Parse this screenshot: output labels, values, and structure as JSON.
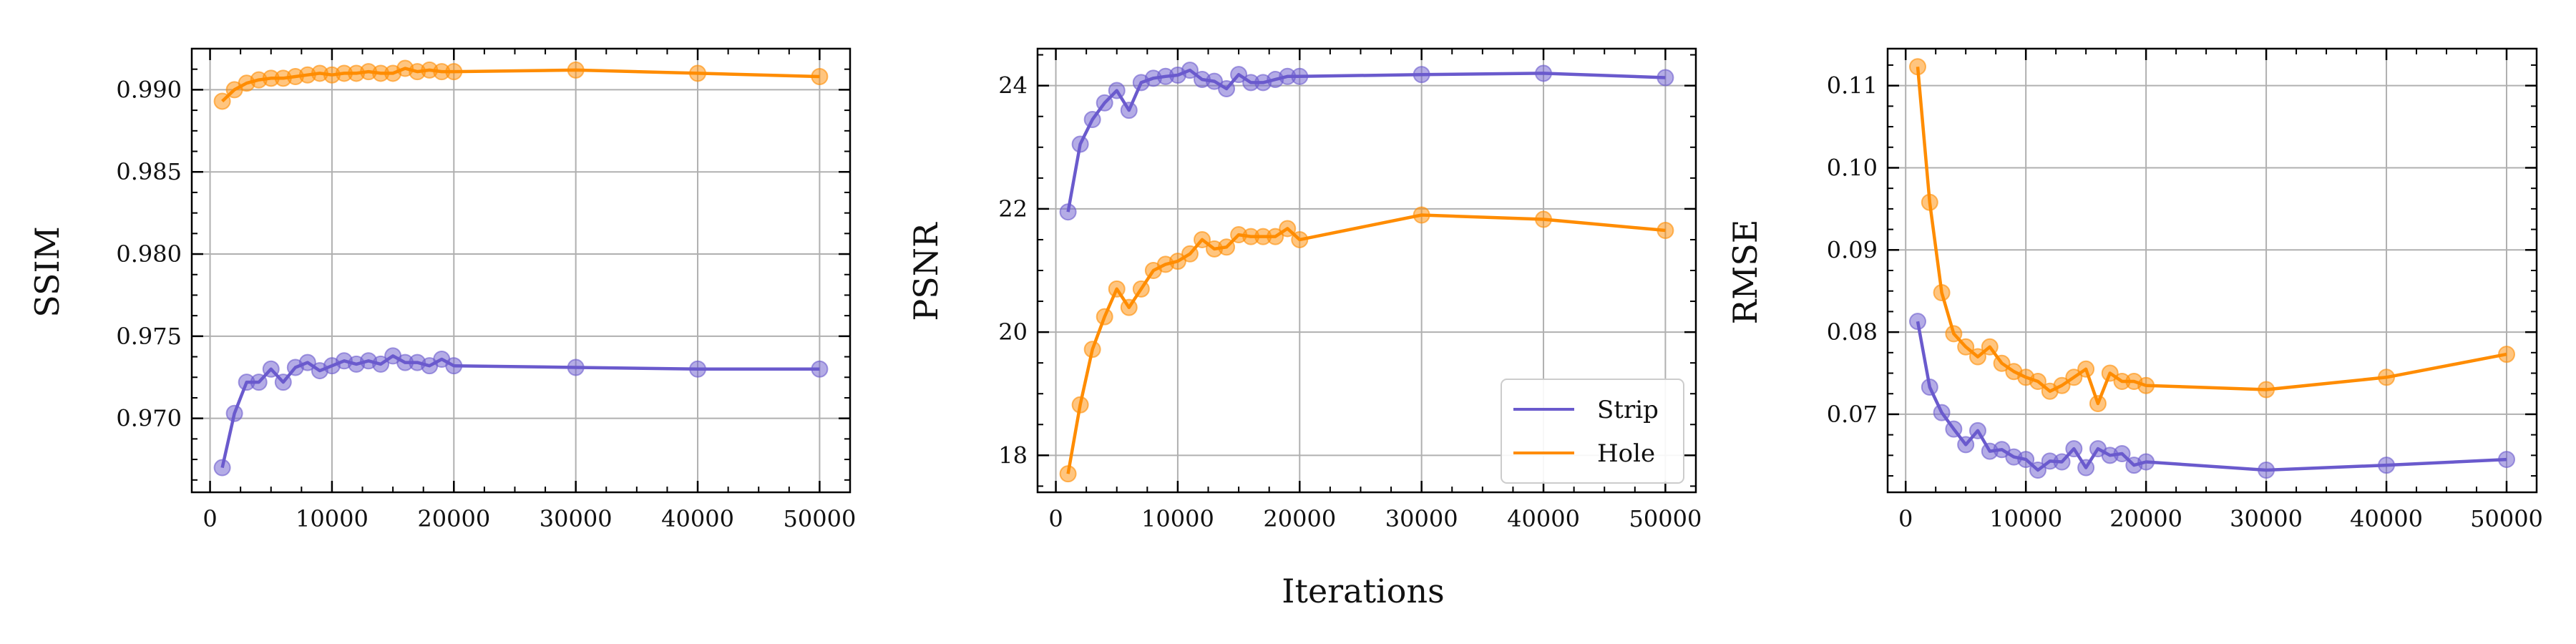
{
  "figure": {
    "xlabel": "Iterations"
  },
  "colors": {
    "Strip": "#6a5acd",
    "Hole": "#ff8c00",
    "grid": "#b0b0b0",
    "axis": "#000000"
  },
  "legend": {
    "placement": "lower-right",
    "panel": 1,
    "entries": [
      "Strip",
      "Hole"
    ]
  },
  "chart_data": [
    {
      "type": "line",
      "title": "",
      "xlabel": "",
      "ylabel": "SSIM",
      "xlim": [
        -1500,
        52500
      ],
      "ylim": [
        0.9655,
        0.9925
      ],
      "xticks": [
        0,
        10000,
        20000,
        30000,
        40000,
        50000
      ],
      "xtick_labels": [
        "0",
        "10000",
        "20000",
        "30000",
        "40000",
        "50000"
      ],
      "yticks": [
        0.97,
        0.975,
        0.98,
        0.985,
        0.99
      ],
      "ytick_labels": [
        "0.970",
        "0.975",
        "0.980",
        "0.985",
        "0.990"
      ],
      "grid": true,
      "x": [
        1000,
        2000,
        3000,
        4000,
        5000,
        6000,
        7000,
        8000,
        9000,
        10000,
        11000,
        12000,
        13000,
        14000,
        15000,
        16000,
        17000,
        18000,
        19000,
        20000,
        30000,
        40000,
        50000
      ],
      "series": [
        {
          "name": "Strip",
          "values": [
            0.967,
            0.9703,
            0.9722,
            0.9722,
            0.973,
            0.9722,
            0.9731,
            0.9734,
            0.9729,
            0.9732,
            0.9735,
            0.9733,
            0.9735,
            0.9733,
            0.9738,
            0.9734,
            0.9734,
            0.9732,
            0.9736,
            0.9732,
            0.9731,
            0.973,
            0.973
          ]
        },
        {
          "name": "Hole",
          "values": [
            0.9893,
            0.99,
            0.9904,
            0.9906,
            0.9907,
            0.9907,
            0.9908,
            0.9909,
            0.991,
            0.9909,
            0.991,
            0.991,
            0.9911,
            0.991,
            0.991,
            0.9913,
            0.9911,
            0.9912,
            0.9911,
            0.9911,
            0.9912,
            0.991,
            0.9908
          ]
        }
      ]
    },
    {
      "type": "line",
      "title": "",
      "xlabel": "",
      "ylabel": "PSNR",
      "xlim": [
        -1500,
        52500
      ],
      "ylim": [
        17.4,
        24.6
      ],
      "xticks": [
        0,
        10000,
        20000,
        30000,
        40000,
        50000
      ],
      "xtick_labels": [
        "0",
        "10000",
        "20000",
        "30000",
        "40000",
        "50000"
      ],
      "yticks": [
        18,
        20,
        22,
        24
      ],
      "ytick_labels": [
        "18",
        "20",
        "22",
        "24"
      ],
      "grid": true,
      "x": [
        1000,
        2000,
        3000,
        4000,
        5000,
        6000,
        7000,
        8000,
        9000,
        10000,
        11000,
        12000,
        13000,
        14000,
        15000,
        16000,
        17000,
        18000,
        19000,
        20000,
        30000,
        40000,
        50000
      ],
      "series": [
        {
          "name": "Strip",
          "values": [
            21.95,
            23.05,
            23.45,
            23.72,
            23.92,
            23.6,
            24.05,
            24.12,
            24.15,
            24.17,
            24.25,
            24.1,
            24.07,
            23.95,
            24.18,
            24.05,
            24.05,
            24.1,
            24.15,
            24.15,
            24.18,
            24.2,
            24.13
          ]
        },
        {
          "name": "Hole",
          "values": [
            17.7,
            18.82,
            19.72,
            20.25,
            20.7,
            20.4,
            20.7,
            21.0,
            21.1,
            21.15,
            21.27,
            21.5,
            21.35,
            21.38,
            21.58,
            21.55,
            21.55,
            21.55,
            21.68,
            21.5,
            21.9,
            21.83,
            21.65
          ]
        }
      ]
    },
    {
      "type": "line",
      "title": "",
      "xlabel": "",
      "ylabel": "RMSE",
      "xlim": [
        -1500,
        52500
      ],
      "ylim": [
        0.0605,
        0.1145
      ],
      "xticks": [
        0,
        10000,
        20000,
        30000,
        40000,
        50000
      ],
      "xtick_labels": [
        "0",
        "10000",
        "20000",
        "30000",
        "40000",
        "50000"
      ],
      "yticks": [
        0.07,
        0.08,
        0.09,
        0.1,
        0.11
      ],
      "ytick_labels": [
        "0.07",
        "0.08",
        "0.09",
        "0.10",
        "0.11"
      ],
      "grid": true,
      "x": [
        1000,
        2000,
        3000,
        4000,
        5000,
        6000,
        7000,
        8000,
        9000,
        10000,
        11000,
        12000,
        13000,
        14000,
        15000,
        16000,
        17000,
        18000,
        19000,
        20000,
        30000,
        40000,
        50000
      ],
      "series": [
        {
          "name": "Strip",
          "values": [
            0.0813,
            0.0733,
            0.0702,
            0.0682,
            0.0663,
            0.068,
            0.0655,
            0.0657,
            0.0648,
            0.0645,
            0.0632,
            0.0643,
            0.0642,
            0.0658,
            0.0635,
            0.0658,
            0.065,
            0.0652,
            0.0638,
            0.0642,
            0.0632,
            0.0638,
            0.0645
          ]
        },
        {
          "name": "Hole",
          "values": [
            0.1123,
            0.0958,
            0.0848,
            0.0798,
            0.0782,
            0.077,
            0.0782,
            0.0762,
            0.0752,
            0.0745,
            0.074,
            0.0728,
            0.0735,
            0.0745,
            0.0755,
            0.0713,
            0.075,
            0.074,
            0.074,
            0.0735,
            0.073,
            0.0745,
            0.0773
          ]
        }
      ]
    }
  ]
}
